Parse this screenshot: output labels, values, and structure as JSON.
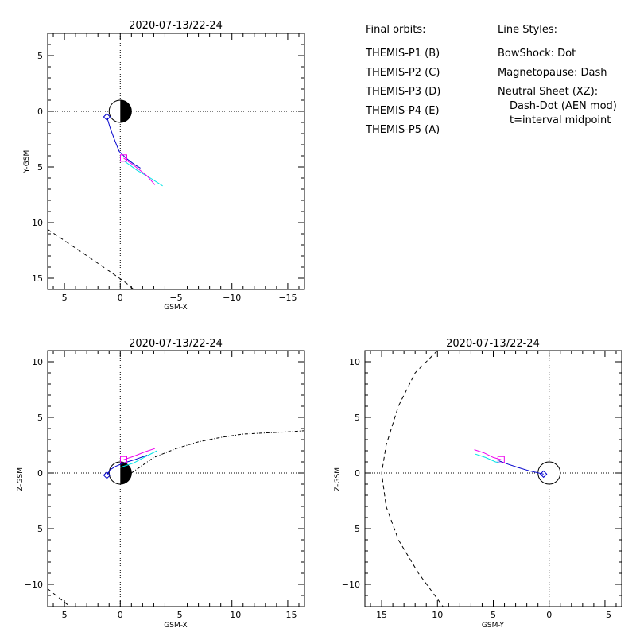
{
  "legend": {
    "orbits_heading": "Final orbits:",
    "orbits": [
      {
        "label": "THEMIS-P1 (B)",
        "color": "#ff0000"
      },
      {
        "label": "THEMIS-P2 (C)",
        "color": "#00dd00"
      },
      {
        "label": "THEMIS-P3 (D)",
        "color": "#00e5e5"
      },
      {
        "label": "THEMIS-P4 (E)",
        "color": "#0000cc"
      },
      {
        "label": "THEMIS-P5 (A)",
        "color": "#ee00ee"
      }
    ],
    "styles_heading": "Line Styles:",
    "styles": [
      "BowShock: Dot",
      "Magnetopause: Dash",
      "Neutral Sheet (XZ):",
      "Dash-Dot (AEN mod)",
      "t=interval midpoint"
    ]
  },
  "chart_data": [
    {
      "type": "line",
      "title": "2020-07-13/22-24",
      "xlabel": "GSM-X",
      "ylabel": "Y-GSM",
      "xlim": [
        6.5,
        -16.5
      ],
      "ylim": [
        16.0,
        -7.0
      ],
      "xticks": [
        5,
        0,
        -5,
        -10,
        -15
      ],
      "xtick_labels": [
        "5",
        "0",
        "−5",
        "−10",
        "−15"
      ],
      "yticks": [
        -5,
        0,
        5,
        10,
        15
      ],
      "ytick_labels": [
        "−5",
        "0",
        "5",
        "10",
        "15"
      ],
      "grid": "dotted zero lines",
      "earth": "half-shaded circle at origin, night side shaded",
      "series": [
        {
          "color": "#00e5e5",
          "points": [
            [
              -0.4,
              4.5
            ],
            [
              -1.5,
              5.3
            ],
            [
              -2.7,
              6.0
            ],
            [
              -3.8,
              6.7
            ]
          ]
        },
        {
          "color": "#ee00ee",
          "points": [
            [
              -0.3,
              4.2
            ],
            [
              -1.4,
              5.0
            ],
            [
              -2.4,
              5.8
            ],
            [
              -3.1,
              6.6
            ]
          ]
        },
        {
          "color": "#0000cc",
          "points": [
            [
              1.2,
              0.5
            ],
            [
              0.9,
              1.5
            ],
            [
              0.5,
              2.6
            ],
            [
              0.1,
              3.6
            ],
            [
              -0.5,
              4.2
            ],
            [
              -1.3,
              4.8
            ],
            [
              -1.8,
              5.1
            ]
          ]
        }
      ],
      "markers": [
        {
          "shape": "diamond",
          "color": "#0000cc",
          "x": 1.2,
          "y": 0.5
        },
        {
          "shape": "square",
          "color": "#ee00ee",
          "x": -0.3,
          "y": 4.2
        }
      ],
      "magnetopause": [
        [
          6.5,
          10.6
        ],
        [
          4.0,
          12.3
        ],
        [
          1.5,
          14.0
        ],
        [
          -0.5,
          15.4
        ],
        [
          -1.2,
          16.0
        ]
      ]
    },
    {
      "type": "line",
      "title": "2020-07-13/22-24",
      "xlabel": "GSM-X",
      "ylabel": "Z-GSM",
      "xlim": [
        6.5,
        -16.5
      ],
      "ylim": [
        -12.0,
        11.0
      ],
      "xticks": [
        5,
        0,
        -5,
        -10,
        -15
      ],
      "xtick_labels": [
        "5",
        "0",
        "−5",
        "−10",
        "−15"
      ],
      "yticks": [
        10,
        5,
        0,
        -5,
        -10
      ],
      "ytick_labels": [
        "10",
        "5",
        "0",
        "−5",
        "−10"
      ],
      "grid": "dotted zero lines",
      "earth": "half-shaded circle at origin, night side shaded",
      "series": [
        {
          "color": "#ee00ee",
          "points": [
            [
              -0.3,
              1.2
            ],
            [
              -1.2,
              1.5
            ],
            [
              -2.2,
              1.9
            ],
            [
              -3.1,
              2.2
            ]
          ]
        },
        {
          "color": "#00e5e5",
          "points": [
            [
              0.0,
              0.5
            ],
            [
              -1.2,
              0.9
            ],
            [
              -2.3,
              1.5
            ],
            [
              -3.3,
              2.0
            ]
          ]
        },
        {
          "color": "#0000cc",
          "points": [
            [
              1.2,
              -0.2
            ],
            [
              0.9,
              0.3
            ],
            [
              0.4,
              0.6
            ],
            [
              -0.3,
              0.9
            ],
            [
              -1.3,
              1.2
            ],
            [
              -2.4,
              1.6
            ]
          ]
        }
      ],
      "markers": [
        {
          "shape": "diamond",
          "color": "#0000cc",
          "x": 1.2,
          "y": -0.2
        },
        {
          "shape": "square",
          "color": "#ee00ee",
          "x": -0.3,
          "y": 1.2
        }
      ],
      "neutral_sheet": [
        [
          -1.0,
          0.0
        ],
        [
          -3.0,
          1.4
        ],
        [
          -5.0,
          2.2
        ],
        [
          -7.0,
          2.8
        ],
        [
          -9.0,
          3.2
        ],
        [
          -11.0,
          3.5
        ],
        [
          -13.0,
          3.6
        ],
        [
          -15.0,
          3.7
        ],
        [
          -16.5,
          3.8
        ]
      ],
      "magnetopause": [
        [
          6.5,
          -10.4
        ],
        [
          5.5,
          -11.2
        ],
        [
          4.5,
          -12.0
        ]
      ]
    },
    {
      "type": "line",
      "title": "2020-07-13/22-24",
      "xlabel": "GSM-Y",
      "ylabel": "Z-GSM",
      "xlim": [
        16.5,
        -6.5
      ],
      "ylim": [
        -12.0,
        11.0
      ],
      "xticks": [
        15,
        10,
        5,
        0,
        -5
      ],
      "xtick_labels": [
        "15",
        "10",
        "5",
        "0",
        "−5"
      ],
      "yticks": [
        10,
        5,
        0,
        -5,
        -10
      ],
      "ytick_labels": [
        "10",
        "5",
        "0",
        "−5",
        "−10"
      ],
      "grid": "dotted zero lines",
      "earth": "circle at origin",
      "series": [
        {
          "color": "#ee00ee",
          "points": [
            [
              6.7,
              2.1
            ],
            [
              5.8,
              1.8
            ],
            [
              5.0,
              1.4
            ],
            [
              4.3,
              1.2
            ]
          ]
        },
        {
          "color": "#00e5e5",
          "points": [
            [
              6.6,
              1.7
            ],
            [
              5.7,
              1.4
            ],
            [
              4.8,
              1.0
            ],
            [
              4.3,
              0.9
            ]
          ]
        },
        {
          "color": "#0000cc",
          "points": [
            [
              4.5,
              1.1
            ],
            [
              3.7,
              0.8
            ],
            [
              2.8,
              0.5
            ],
            [
              1.8,
              0.2
            ],
            [
              0.5,
              -0.1
            ]
          ]
        }
      ],
      "markers": [
        {
          "shape": "diamond",
          "color": "#0000cc",
          "x": 0.5,
          "y": -0.1
        },
        {
          "shape": "square",
          "color": "#ee00ee",
          "x": 4.3,
          "y": 1.2
        }
      ],
      "magnetopause": [
        [
          10.0,
          11.0
        ],
        [
          12.0,
          9.0
        ],
        [
          13.5,
          6.0
        ],
        [
          14.6,
          2.5
        ],
        [
          15.0,
          0.0
        ],
        [
          14.6,
          -3.0
        ],
        [
          13.5,
          -6.0
        ],
        [
          11.7,
          -9.0
        ],
        [
          9.5,
          -12.0
        ]
      ]
    }
  ]
}
